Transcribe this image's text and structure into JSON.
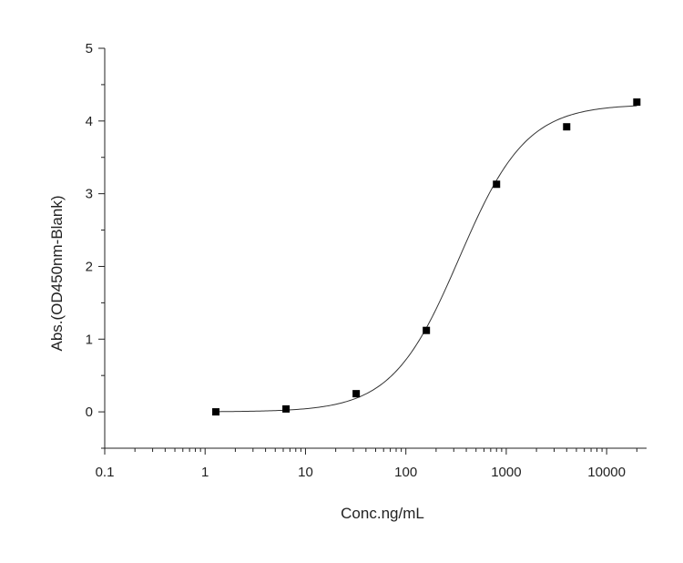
{
  "chart_data": {
    "type": "scatter",
    "title": "",
    "xlabel": "Conc.ng/mL",
    "ylabel": "Abs.(OD450nm-Blank)",
    "x_scale": "log",
    "xlim": [
      0.1,
      25000
    ],
    "ylim": [
      -0.5,
      5
    ],
    "x_ticks": [
      0.1,
      1,
      10,
      100,
      1000,
      10000
    ],
    "x_tick_labels": [
      "0.1",
      "1",
      "10",
      "100",
      "1000",
      "10000"
    ],
    "y_ticks": [
      0,
      1,
      2,
      3,
      4,
      5
    ],
    "y_tick_labels": [
      "0",
      "1",
      "2",
      "3",
      "4",
      "5"
    ],
    "grid": false,
    "legend": "none",
    "series": [
      {
        "x": [
          1.28,
          6.4,
          32,
          160,
          800,
          4000,
          20000
        ],
        "y": [
          0.0,
          0.04,
          0.25,
          1.12,
          3.13,
          3.92,
          4.26
        ],
        "marker": "square",
        "fit_line": "4PL",
        "fit": {
          "bottom": 0.0,
          "top": 4.23,
          "ec50": 340,
          "hill": 1.3
        }
      }
    ],
    "colors": {
      "marker": "#000000",
      "line": "#333333",
      "axis": "#222222"
    }
  }
}
